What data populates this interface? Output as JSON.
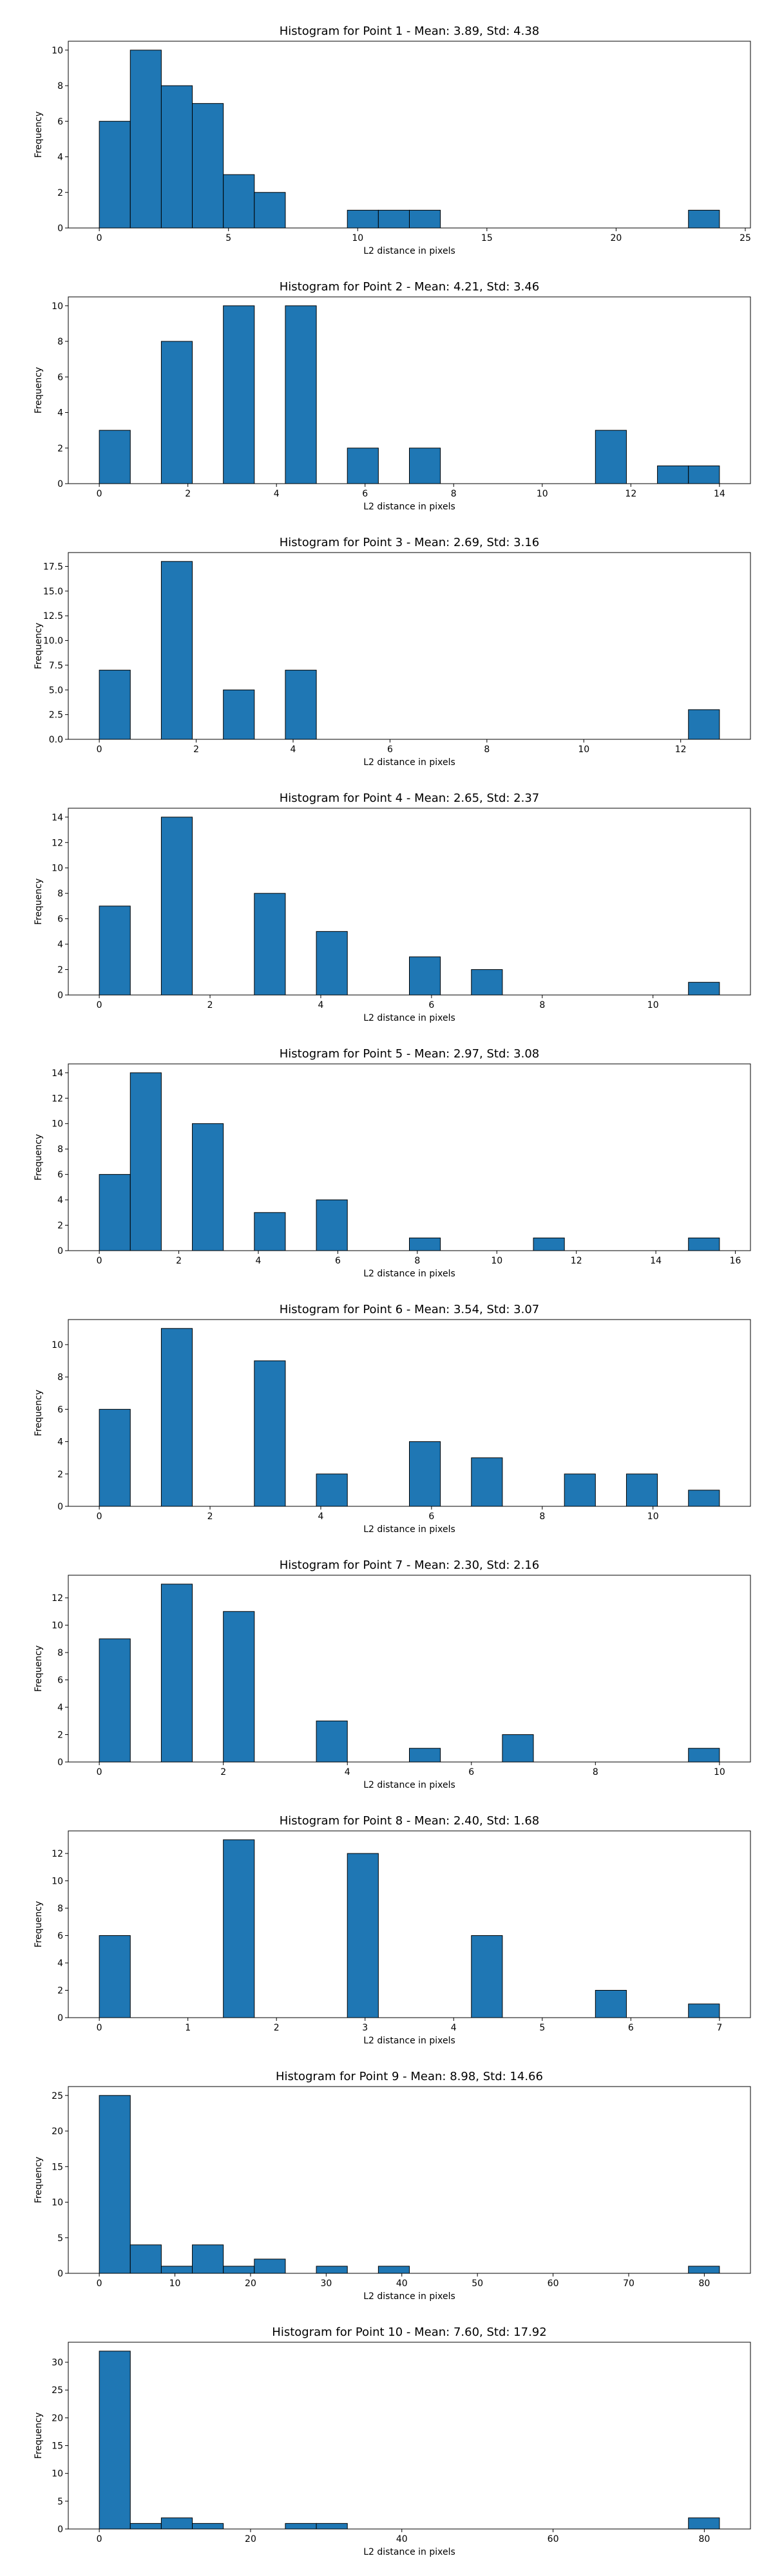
{
  "chart_data": [
    {
      "type": "bar",
      "title": "Histogram for Point 1 - Mean: 3.89, Std: 4.38",
      "xlabel": "L2 distance in pixels",
      "ylabel": "Frequency",
      "xlim": [
        -1.2,
        25.2
      ],
      "ylim": [
        0,
        10.5
      ],
      "xticks": [
        0,
        5,
        10,
        15,
        20,
        25
      ],
      "xtick_labels": [
        "0",
        "5",
        "10",
        "15",
        "20",
        "25"
      ],
      "yticks": [
        0,
        2,
        4,
        6,
        8,
        10
      ],
      "ytick_labels": [
        "0",
        "2",
        "4",
        "6",
        "8",
        "10"
      ],
      "bins": [
        [
          0,
          1.2,
          6
        ],
        [
          1.2,
          2.4,
          10
        ],
        [
          2.4,
          3.6,
          8
        ],
        [
          3.6,
          4.8,
          7
        ],
        [
          4.8,
          6.0,
          3
        ],
        [
          6.0,
          7.2,
          2
        ],
        [
          9.6,
          10.8,
          1
        ],
        [
          10.8,
          12.0,
          1
        ],
        [
          12.0,
          13.2,
          1
        ],
        [
          22.8,
          24.0,
          1
        ]
      ]
    },
    {
      "type": "bar",
      "title": "Histogram for Point 2 - Mean: 4.21, Std: 3.46",
      "xlabel": "L2 distance in pixels",
      "ylabel": "Frequency",
      "xlim": [
        -0.7,
        14.7
      ],
      "ylim": [
        0,
        10.5
      ],
      "xticks": [
        0,
        2,
        4,
        6,
        8,
        10,
        12,
        14
      ],
      "xtick_labels": [
        "0",
        "2",
        "4",
        "6",
        "8",
        "10",
        "12",
        "14"
      ],
      "yticks": [
        0,
        2,
        4,
        6,
        8,
        10
      ],
      "ytick_labels": [
        "0",
        "2",
        "4",
        "6",
        "8",
        "10"
      ],
      "bins": [
        [
          0,
          0.7,
          3
        ],
        [
          1.4,
          2.1,
          8
        ],
        [
          2.8,
          3.5,
          10
        ],
        [
          4.2,
          4.9,
          10
        ],
        [
          5.6,
          6.3,
          2
        ],
        [
          7.0,
          7.7,
          2
        ],
        [
          11.2,
          11.9,
          3
        ],
        [
          12.6,
          13.3,
          1
        ],
        [
          13.3,
          14.0,
          1
        ]
      ]
    },
    {
      "type": "bar",
      "title": "Histogram for Point 3 - Mean: 2.69, Std: 3.16",
      "xlabel": "L2 distance in pixels",
      "ylabel": "Frequency",
      "xlim": [
        -0.64,
        13.44
      ],
      "ylim": [
        0,
        18.9
      ],
      "xticks": [
        0,
        2,
        4,
        6,
        8,
        10,
        12
      ],
      "xtick_labels": [
        "0",
        "2",
        "4",
        "6",
        "8",
        "10",
        "12"
      ],
      "yticks": [
        0,
        2.5,
        5,
        7.5,
        10,
        12.5,
        15,
        17.5
      ],
      "ytick_labels": [
        "0.0",
        "2.5",
        "5.0",
        "7.5",
        "10.0",
        "12.5",
        "15.0",
        "17.5"
      ],
      "bins": [
        [
          0,
          0.64,
          7
        ],
        [
          1.28,
          1.92,
          18
        ],
        [
          2.56,
          3.2,
          5
        ],
        [
          3.84,
          4.48,
          7
        ],
        [
          12.16,
          12.8,
          3
        ]
      ]
    },
    {
      "type": "bar",
      "title": "Histogram for Point 4 - Mean: 2.65, Std: 2.37",
      "xlabel": "L2 distance in pixels",
      "ylabel": "Frequency",
      "xlim": [
        -0.56,
        11.76
      ],
      "ylim": [
        0,
        14.7
      ],
      "xticks": [
        0,
        2,
        4,
        6,
        8,
        10
      ],
      "xtick_labels": [
        "0",
        "2",
        "4",
        "6",
        "8",
        "10"
      ],
      "yticks": [
        0,
        2,
        4,
        6,
        8,
        10,
        12,
        14
      ],
      "ytick_labels": [
        "0",
        "2",
        "4",
        "6",
        "8",
        "10",
        "12",
        "14"
      ],
      "bins": [
        [
          0,
          0.56,
          7
        ],
        [
          1.12,
          1.68,
          14
        ],
        [
          2.8,
          3.36,
          8
        ],
        [
          3.92,
          4.48,
          5
        ],
        [
          5.6,
          6.16,
          3
        ],
        [
          6.72,
          7.28,
          2
        ],
        [
          10.64,
          11.2,
          1
        ]
      ]
    },
    {
      "type": "bar",
      "title": "Histogram for Point 5 - Mean: 2.97, Std: 3.08",
      "xlabel": "L2 distance in pixels",
      "ylabel": "Frequency",
      "xlim": [
        -0.78,
        16.38
      ],
      "ylim": [
        0,
        14.7
      ],
      "xticks": [
        0,
        2,
        4,
        6,
        8,
        10,
        12,
        14,
        16
      ],
      "xtick_labels": [
        "0",
        "2",
        "4",
        "6",
        "8",
        "10",
        "12",
        "14",
        "16"
      ],
      "yticks": [
        0,
        2,
        4,
        6,
        8,
        10,
        12,
        14
      ],
      "ytick_labels": [
        "0",
        "2",
        "4",
        "6",
        "8",
        "10",
        "12",
        "14"
      ],
      "bins": [
        [
          0,
          0.78,
          6
        ],
        [
          0.78,
          1.56,
          14
        ],
        [
          2.34,
          3.12,
          10
        ],
        [
          3.9,
          4.68,
          3
        ],
        [
          5.46,
          6.24,
          4
        ],
        [
          7.8,
          8.58,
          1
        ],
        [
          10.92,
          11.7,
          1
        ],
        [
          14.82,
          15.6,
          1
        ]
      ]
    },
    {
      "type": "bar",
      "title": "Histogram for Point 6 - Mean: 3.54, Std: 3.07",
      "xlabel": "L2 distance in pixels",
      "ylabel": "Frequency",
      "xlim": [
        -0.56,
        11.76
      ],
      "ylim": [
        0,
        11.55
      ],
      "xticks": [
        0,
        2,
        4,
        6,
        8,
        10
      ],
      "xtick_labels": [
        "0",
        "2",
        "4",
        "6",
        "8",
        "10"
      ],
      "yticks": [
        0,
        2,
        4,
        6,
        8,
        10
      ],
      "ytick_labels": [
        "0",
        "2",
        "4",
        "6",
        "8",
        "10"
      ],
      "bins": [
        [
          0,
          0.56,
          6
        ],
        [
          1.12,
          1.68,
          11
        ],
        [
          2.8,
          3.36,
          9
        ],
        [
          3.92,
          4.48,
          2
        ],
        [
          5.6,
          6.16,
          4
        ],
        [
          6.72,
          7.28,
          3
        ],
        [
          8.4,
          8.96,
          2
        ],
        [
          9.52,
          10.08,
          2
        ],
        [
          10.64,
          11.2,
          1
        ]
      ]
    },
    {
      "type": "bar",
      "title": "Histogram for Point 7 - Mean: 2.30, Std: 2.16",
      "xlabel": "L2 distance in pixels",
      "ylabel": "Frequency",
      "xlim": [
        -0.5,
        10.5
      ],
      "ylim": [
        0,
        13.65
      ],
      "xticks": [
        0,
        2,
        4,
        6,
        8,
        10
      ],
      "xtick_labels": [
        "0",
        "2",
        "4",
        "6",
        "8",
        "10"
      ],
      "yticks": [
        0,
        2,
        4,
        6,
        8,
        10,
        12
      ],
      "ytick_labels": [
        "0",
        "2",
        "4",
        "6",
        "8",
        "10",
        "12"
      ],
      "bins": [
        [
          0,
          0.5,
          9
        ],
        [
          1.0,
          1.5,
          13
        ],
        [
          2.0,
          2.5,
          11
        ],
        [
          3.5,
          4.0,
          3
        ],
        [
          5.0,
          5.5,
          1
        ],
        [
          6.5,
          7.0,
          2
        ],
        [
          9.5,
          10.0,
          1
        ]
      ]
    },
    {
      "type": "bar",
      "title": "Histogram for Point 8 - Mean: 2.40, Std: 1.68",
      "xlabel": "L2 distance in pixels",
      "ylabel": "Frequency",
      "xlim": [
        -0.35,
        7.35
      ],
      "ylim": [
        0,
        13.65
      ],
      "xticks": [
        0,
        1,
        2,
        3,
        4,
        5,
        6,
        7
      ],
      "xtick_labels": [
        "0",
        "1",
        "2",
        "3",
        "4",
        "5",
        "6",
        "7"
      ],
      "yticks": [
        0,
        2,
        4,
        6,
        8,
        10,
        12
      ],
      "ytick_labels": [
        "0",
        "2",
        "4",
        "6",
        "8",
        "10",
        "12"
      ],
      "bins": [
        [
          0,
          0.35,
          6
        ],
        [
          1.4,
          1.75,
          13
        ],
        [
          2.8,
          3.15,
          12
        ],
        [
          4.2,
          4.55,
          6
        ],
        [
          5.6,
          5.95,
          2
        ],
        [
          6.65,
          7.0,
          1
        ]
      ]
    },
    {
      "type": "bar",
      "title": "Histogram for Point 9 - Mean: 8.98, Std: 14.66",
      "xlabel": "L2 distance in pixels",
      "ylabel": "Frequency",
      "xlim": [
        -4.1,
        86.1
      ],
      "ylim": [
        0,
        26.25
      ],
      "xticks": [
        0,
        10,
        20,
        30,
        40,
        50,
        60,
        70,
        80
      ],
      "xtick_labels": [
        "0",
        "10",
        "20",
        "30",
        "40",
        "50",
        "60",
        "70",
        "80"
      ],
      "yticks": [
        0,
        5,
        10,
        15,
        20,
        25
      ],
      "ytick_labels": [
        "0",
        "5",
        "10",
        "15",
        "20",
        "25"
      ],
      "bins": [
        [
          0,
          4.1,
          25
        ],
        [
          4.1,
          8.2,
          4
        ],
        [
          8.2,
          12.3,
          1
        ],
        [
          12.3,
          16.4,
          4
        ],
        [
          16.4,
          20.5,
          1
        ],
        [
          20.5,
          24.6,
          2
        ],
        [
          28.7,
          32.8,
          1
        ],
        [
          36.9,
          41.0,
          1
        ],
        [
          77.9,
          82.0,
          1
        ]
      ]
    },
    {
      "type": "bar",
      "title": "Histogram for Point 10 - Mean: 7.60, Std: 17.92",
      "xlabel": "L2 distance in pixels",
      "ylabel": "Frequency",
      "xlim": [
        -4.1,
        86.1
      ],
      "ylim": [
        0,
        33.6
      ],
      "xticks": [
        0,
        20,
        40,
        60,
        80
      ],
      "xtick_labels": [
        "0",
        "20",
        "40",
        "60",
        "80"
      ],
      "yticks": [
        0,
        5,
        10,
        15,
        20,
        25,
        30
      ],
      "ytick_labels": [
        "0",
        "5",
        "10",
        "15",
        "20",
        "25",
        "30"
      ],
      "bins": [
        [
          0,
          4.1,
          32
        ],
        [
          4.1,
          8.2,
          1
        ],
        [
          8.2,
          12.3,
          2
        ],
        [
          12.3,
          16.4,
          1
        ],
        [
          24.6,
          28.7,
          1
        ],
        [
          28.7,
          32.8,
          1
        ],
        [
          77.9,
          82.0,
          2
        ]
      ]
    }
  ]
}
